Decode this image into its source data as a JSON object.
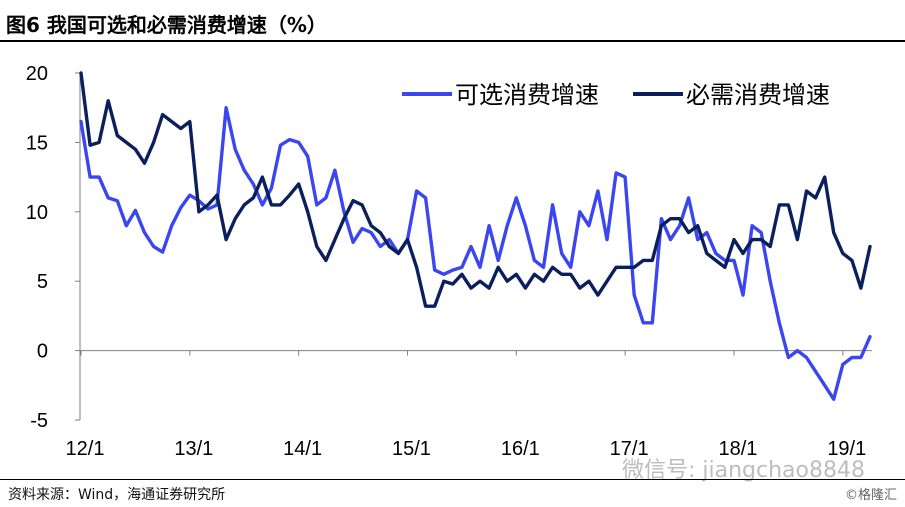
{
  "title": "图6  我国可选和必需消费增速（%）",
  "source": "资料来源：Wind，海通证券研究所",
  "copyright": "©格隆汇",
  "watermark": "微信号: jiangchao8848",
  "colors": {
    "optional": "#3b46f0",
    "essential": "#0b1f5c",
    "axis": "#808080"
  },
  "chart_data": {
    "type": "line",
    "ylim": [
      -5,
      20
    ],
    "yticks": [
      20,
      15,
      10,
      5,
      0,
      -5
    ],
    "x_labels": [
      "12/1",
      "13/1",
      "14/1",
      "15/1",
      "16/1",
      "17/1",
      "18/1",
      "19/1"
    ],
    "legend_position": "top-right",
    "series": [
      {
        "name": "可选消费增速",
        "values": [
          16.5,
          12.5,
          12.5,
          11,
          10.8,
          9,
          10.1,
          8.5,
          7.5,
          7.1,
          9,
          10.3,
          11.2,
          10.8,
          10.2,
          10.5,
          17.5,
          14.5,
          13,
          12,
          10.5,
          11.7,
          14.8,
          15.2,
          15,
          14,
          10.5,
          11,
          13,
          10,
          7.8,
          8.8,
          8.5,
          7.5,
          8,
          7,
          8,
          11.5,
          11,
          5.8,
          5.5,
          5.8,
          6,
          7.5,
          6,
          9,
          6.5,
          9,
          11,
          9,
          6.5,
          6,
          10.5,
          7,
          6,
          10,
          9,
          11.5,
          8,
          12.8,
          12.5,
          4,
          2,
          2,
          9.5,
          8,
          9,
          11,
          8,
          8.5,
          7,
          6.5,
          6.5,
          4,
          9,
          8.5,
          5,
          2,
          -0.5,
          0,
          -0.5,
          -1.5,
          -2.5,
          -3.5,
          -1,
          -0.5,
          -0.5,
          1
        ]
      },
      {
        "name": "必需消费增速",
        "values": [
          20,
          14.8,
          15,
          18,
          15.5,
          15,
          14.5,
          13.5,
          15,
          17,
          16.5,
          16,
          16.5,
          10,
          10.5,
          11.2,
          8,
          9.5,
          10.5,
          11,
          12.5,
          10.5,
          10.5,
          11.2,
          12,
          10,
          7.5,
          6.5,
          8,
          9.5,
          10.8,
          10.5,
          9,
          8.5,
          7.5,
          7,
          8,
          6,
          3.2,
          3.2,
          5,
          4.8,
          5.5,
          4.5,
          5,
          4.5,
          6,
          5,
          5.5,
          4.5,
          5.5,
          5,
          6,
          5.5,
          5.5,
          4.5,
          5,
          4,
          5,
          6,
          6,
          6,
          6.5,
          6.5,
          9,
          9.5,
          9.5,
          8.5,
          9,
          7,
          6.5,
          6,
          8,
          7,
          8,
          8,
          7.5,
          10.5,
          10.5,
          8,
          11.5,
          11,
          12.5,
          8.5,
          7,
          6.5,
          4.5,
          7.5
        ]
      }
    ]
  }
}
